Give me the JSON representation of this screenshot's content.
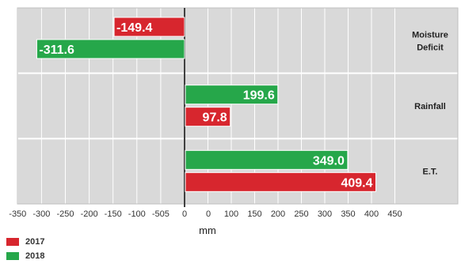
{
  "chart_data": {
    "type": "bar",
    "orientation": "horizontal",
    "categories": [
      "Moisture Deficit",
      "Rainfall",
      "E.T."
    ],
    "series": [
      {
        "name": "2017",
        "values": [
          -149.4,
          97.8,
          409.4
        ],
        "color": "#d7262e"
      },
      {
        "name": "2018",
        "values": [
          -311.6,
          199.6,
          349.0
        ],
        "color": "#26a74a"
      }
    ],
    "value_labels": {
      "2017": [
        "-149.4",
        "97.8",
        "409.4"
      ],
      "2018": [
        "-311.6",
        "199.6",
        "349.0"
      ]
    },
    "category_labels": [
      [
        "Moisture",
        "Deficit"
      ],
      [
        "Rainfall"
      ],
      [
        "E.T."
      ]
    ],
    "x_tick_labels": [
      "-350",
      "-300",
      "-250",
      "-200",
      "-150",
      "-100",
      "-505",
      "0",
      "0",
      "100",
      "150",
      "200",
      "250",
      "300",
      "350",
      "400",
      "450"
    ],
    "xlabel": "mm",
    "xlim": [
      -350,
      450
    ],
    "grid": true,
    "plot_background": "#d9d9d9",
    "legend_position": "bottom-left"
  }
}
